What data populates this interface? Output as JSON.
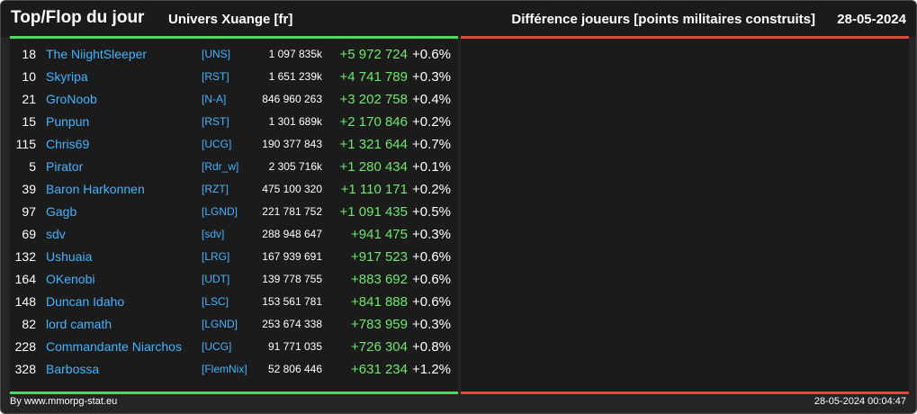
{
  "header": {
    "title": "Top/Flop du jour",
    "universe": "Univers Xuange [fr]",
    "metric": "Différence joueurs [points militaires construits]",
    "date": "28-05-2024"
  },
  "colors": {
    "top_accent": "#4cd964",
    "flop_accent": "#e0483e",
    "link": "#45b3ff",
    "gain": "#6ee76e"
  },
  "top_rows": [
    {
      "rank": "18",
      "name": "The NiightSleeper",
      "alliance": "[UNS]",
      "points": "1 097 835k",
      "diff": "+5 972 724",
      "pct": "+0.6%"
    },
    {
      "rank": "10",
      "name": "Skyripa",
      "alliance": "[RST]",
      "points": "1 651 239k",
      "diff": "+4 741 789",
      "pct": "+0.3%"
    },
    {
      "rank": "21",
      "name": "GroNoob",
      "alliance": "[N-A]",
      "points": "846 960 263",
      "diff": "+3 202 758",
      "pct": "+0.4%"
    },
    {
      "rank": "15",
      "name": "Punpun",
      "alliance": "[RST]",
      "points": "1 301 689k",
      "diff": "+2 170 846",
      "pct": "+0.2%"
    },
    {
      "rank": "115",
      "name": "Chris69",
      "alliance": "[UCG]",
      "points": "190 377 843",
      "diff": "+1 321 644",
      "pct": "+0.7%"
    },
    {
      "rank": "5",
      "name": "Pirator",
      "alliance": "[Rdr_w]",
      "points": "2 305 716k",
      "diff": "+1 280 434",
      "pct": "+0.1%"
    },
    {
      "rank": "39",
      "name": "Baron Harkonnen",
      "alliance": "[RZT]",
      "points": "475 100 320",
      "diff": "+1 110 171",
      "pct": "+0.2%"
    },
    {
      "rank": "97",
      "name": "Gagb",
      "alliance": "[LGND]",
      "points": "221 781 752",
      "diff": "+1 091 435",
      "pct": "+0.5%"
    },
    {
      "rank": "69",
      "name": "sdv",
      "alliance": "[sdv]",
      "points": "288 948 647",
      "diff": "+941 475",
      "pct": "+0.3%"
    },
    {
      "rank": "132",
      "name": "Ushuaia",
      "alliance": "[LRG]",
      "points": "167 939 691",
      "diff": "+917 523",
      "pct": "+0.6%"
    },
    {
      "rank": "164",
      "name": "OKenobi",
      "alliance": "[UDT]",
      "points": "139 778 755",
      "diff": "+883 692",
      "pct": "+0.6%"
    },
    {
      "rank": "148",
      "name": "Duncan Idaho",
      "alliance": "[LSC]",
      "points": "153 561 781",
      "diff": "+841 888",
      "pct": "+0.6%"
    },
    {
      "rank": "82",
      "name": "lord camath",
      "alliance": "[LGND]",
      "points": "253 674 338",
      "diff": "+783 959",
      "pct": "+0.3%"
    },
    {
      "rank": "228",
      "name": "Commandante Niarchos",
      "alliance": "[UCG]",
      "points": "91 771 035",
      "diff": "+726 304",
      "pct": "+0.8%"
    },
    {
      "rank": "328",
      "name": "Barbossa",
      "alliance": "[FlemNix]",
      "points": "52 806 446",
      "diff": "+631 234",
      "pct": "+1.2%"
    }
  ],
  "footer": {
    "credit": "By www.mmorpg-stat.eu",
    "timestamp": "28-05-2024 00:04:47"
  }
}
